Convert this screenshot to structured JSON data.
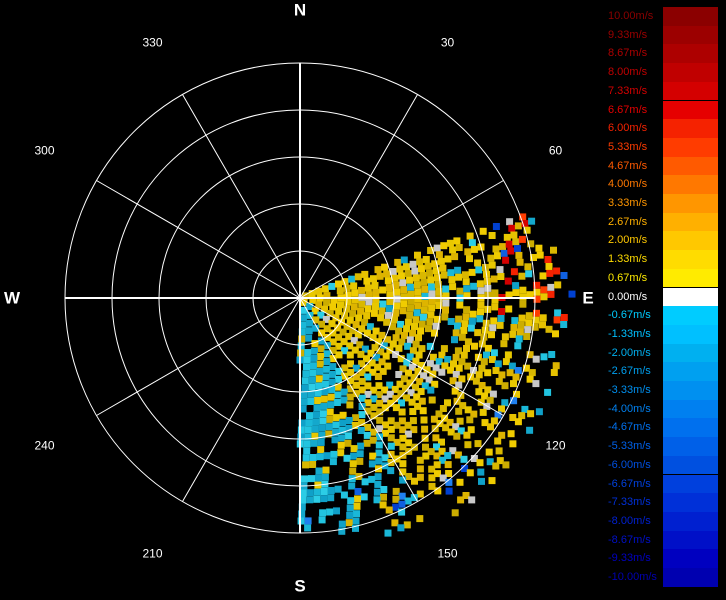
{
  "chart_data": {
    "type": "heatmap",
    "projection": "polar",
    "direction_labels": {
      "north": "N",
      "east": "E",
      "south": "S",
      "west": "W"
    },
    "angle_labels": [
      "30",
      "60",
      "120",
      "150",
      "210",
      "240",
      "300",
      "330"
    ],
    "angle_values_deg": [
      30,
      60,
      120,
      150,
      210,
      240,
      300,
      330
    ],
    "ring_count": 5,
    "spoke_interval_deg": 30,
    "grid": true,
    "data_sector_deg": [
      70,
      180
    ],
    "sector_summary": [
      {
        "bearing_range": [
          70,
          95
        ],
        "dominant_velocity": 0.67,
        "note": "mostly yellow with red outliers near E"
      },
      {
        "bearing_range": [
          95,
          130
        ],
        "dominant_velocity": 1.33,
        "note": "yellow/gold with scattered cyan and white"
      },
      {
        "bearing_range": [
          130,
          160
        ],
        "dominant_velocity": 0.67,
        "note": "yellow mixed with cyan"
      },
      {
        "bearing_range": [
          160,
          180
        ],
        "dominant_velocity": -0.67,
        "note": "mostly cyan near S, sparse blue outliers"
      }
    ],
    "legend": {
      "placement": "right",
      "labels": [
        "10.00m/s",
        "9.33m/s",
        "8.67m/s",
        "8.00m/s",
        "7.33m/s",
        "6.67m/s",
        "6.00m/s",
        "5.33m/s",
        "4.67m/s",
        "4.00m/s",
        "3.33m/s",
        "2.67m/s",
        "2.00m/s",
        "1.33m/s",
        "0.67m/s",
        "0.00m/s",
        "-0.67m/s",
        "-1.33m/s",
        "-2.00m/s",
        "-2.67m/s",
        "-3.33m/s",
        "-4.00m/s",
        "-4.67m/s",
        "-5.33m/s",
        "-6.00m/s",
        "-6.67m/s",
        "-7.33m/s",
        "-8.00m/s",
        "-8.67m/s",
        "-9.33m/s",
        "-10.00m/s"
      ],
      "values": [
        10.0,
        9.33,
        8.67,
        8.0,
        7.33,
        6.67,
        6.0,
        5.33,
        4.67,
        4.0,
        3.33,
        2.67,
        2.0,
        1.33,
        0.67,
        0.0,
        -0.67,
        -1.33,
        -2.0,
        -2.67,
        -3.33,
        -4.0,
        -4.67,
        -5.33,
        -6.0,
        -6.67,
        -7.33,
        -8.0,
        -8.67,
        -9.33,
        -10.0
      ],
      "colors": [
        "#8b0000",
        "#9c0000",
        "#ad0000",
        "#c00000",
        "#d40000",
        "#e60000",
        "#f52200",
        "#ff3c00",
        "#ff5a00",
        "#ff7800",
        "#ff9600",
        "#ffb000",
        "#ffc800",
        "#ffdc00",
        "#ffeb00",
        "#ffffff",
        "#00ccff",
        "#00c0ff",
        "#00b0f0",
        "#00a0f0",
        "#0090f0",
        "#0080f0",
        "#0070ee",
        "#0060e8",
        "#0050e0",
        "#0040dd",
        "#0030d8",
        "#0020d0",
        "#0010c8",
        "#0000c0",
        "#0000b0"
      ]
    }
  }
}
